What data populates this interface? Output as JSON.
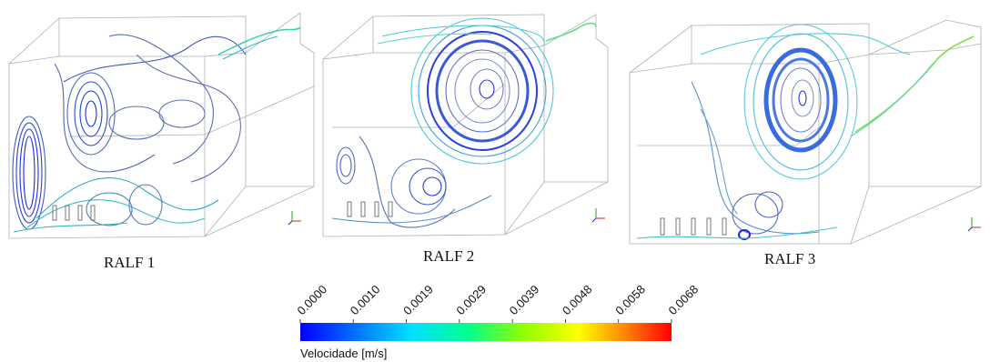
{
  "panels": [
    {
      "label": "RALF 1"
    },
    {
      "label": "RALF 2"
    },
    {
      "label": "RALF 3"
    }
  ],
  "colorbar": {
    "title": "Velocidade  [m/s]",
    "ticks": [
      "0.0000",
      "0.0010",
      "0.0019",
      "0.0029",
      "0.0039",
      "0.0048",
      "0.0058",
      "0.0068"
    ],
    "colors": [
      "#0000ff",
      "#0080ff",
      "#00ffff",
      "#00ff80",
      "#80ff00",
      "#ffff00",
      "#ff8000",
      "#ff0000"
    ]
  }
}
